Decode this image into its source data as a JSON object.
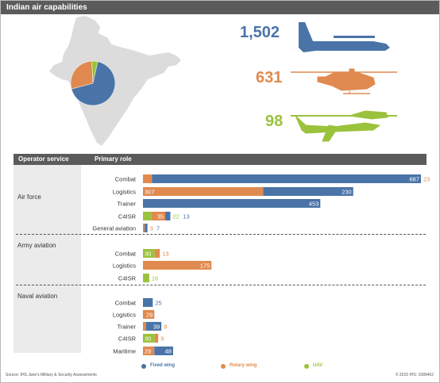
{
  "title": "Indian air capabilities",
  "totals": {
    "fixed_wing": "1,502",
    "rotary_wing": "631",
    "uav": "98"
  },
  "headers": {
    "operator": "Operator service",
    "role": "Primary role"
  },
  "colors": {
    "fixed_wing": "#4a74a8",
    "rotary_wing": "#e08a4f",
    "uav": "#9bc23c",
    "india_map": "#dcdcdc"
  },
  "legend": {
    "fixed_wing": "Fixed wing",
    "rotary_wing": "Rotary wing",
    "uav": "UAV"
  },
  "footer": {
    "source": "Source: IHS Jane's Military & Security Assessments",
    "copyright": "© 2015 IHS: 1589402"
  },
  "chart_data": [
    {
      "type": "pie",
      "categories": [
        "Fixed wing",
        "Rotary wing",
        "UAV"
      ],
      "values": [
        1502,
        631,
        98
      ]
    },
    {
      "type": "bar",
      "orientation": "horizontal",
      "stacked": true,
      "series_names": [
        "Fixed wing",
        "Rotary wing",
        "UAV"
      ],
      "groups": [
        {
          "name": "Air force",
          "rows": [
            {
              "role": "Combat",
              "uav": null,
              "rotary": 23,
              "fixed": 687
            },
            {
              "role": "Logistics",
              "uav": null,
              "rotary": 307,
              "fixed": 230
            },
            {
              "role": "Trainer",
              "uav": null,
              "rotary": null,
              "fixed": 453
            },
            {
              "role": "C4ISR",
              "uav": 22,
              "rotary": 35,
              "fixed": 13
            },
            {
              "role": "General aviation",
              "uav": null,
              "rotary": 3,
              "fixed": 7
            }
          ]
        },
        {
          "name": "Army aviation",
          "rows": [
            {
              "role": "Combat",
              "uav": 30,
              "rotary": 13,
              "fixed": null
            },
            {
              "role": "Logistics",
              "uav": null,
              "rotary": 175,
              "fixed": null
            },
            {
              "role": "C4ISR",
              "uav": 16,
              "rotary": null,
              "fixed": null
            }
          ]
        },
        {
          "name": "Naval aviation",
          "rows": [
            {
              "role": "Combat",
              "uav": null,
              "rotary": null,
              "fixed": 25
            },
            {
              "role": "Logistics",
              "uav": null,
              "rotary": 29,
              "fixed": null
            },
            {
              "role": "Trainer",
              "uav": null,
              "rotary": 8,
              "fixed": 39
            },
            {
              "role": "C4ISR",
              "uav": 30,
              "rotary": 9,
              "fixed": null
            },
            {
              "role": "Maritime",
              "uav": null,
              "rotary": 29,
              "fixed": 48
            }
          ]
        }
      ]
    }
  ]
}
